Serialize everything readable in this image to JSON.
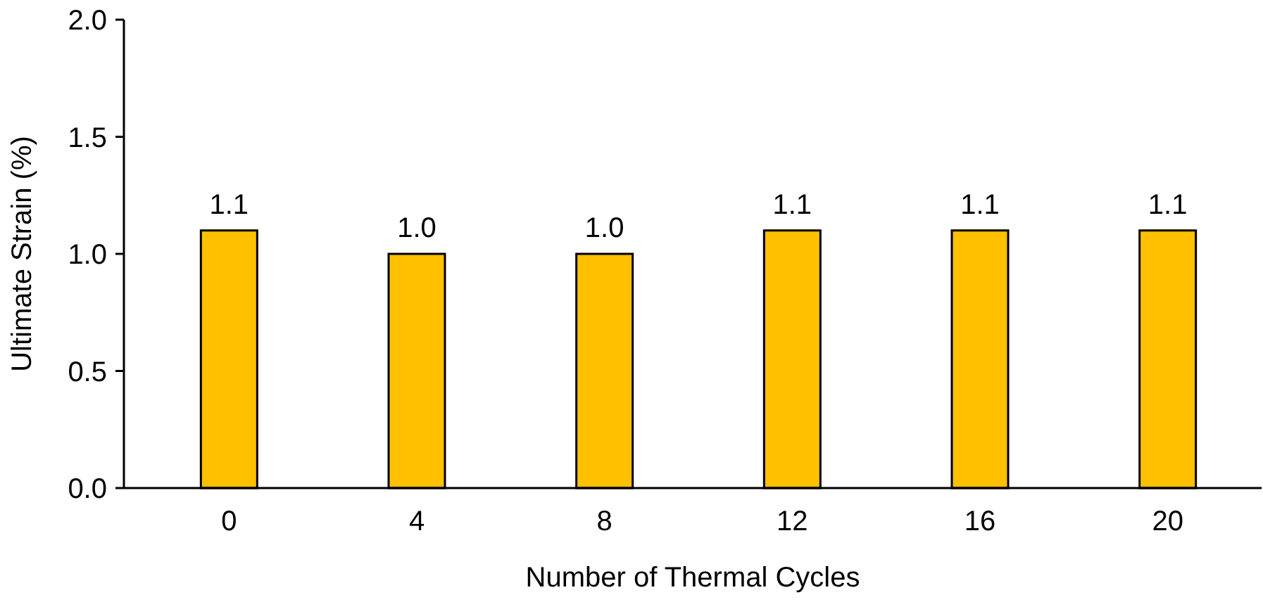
{
  "chart_data": {
    "type": "bar",
    "xlabel": "Number of Thermal Cycles",
    "ylabel": "Ultimate Strain (%)",
    "categories": [
      "0",
      "4",
      "8",
      "12",
      "16",
      "20"
    ],
    "values": [
      1.1,
      1.0,
      1.0,
      1.1,
      1.1,
      1.1
    ],
    "value_labels": [
      "1.1",
      "1.0",
      "1.0",
      "1.1",
      "1.1",
      "1.1"
    ],
    "color": "#ffc000",
    "ylim": [
      0,
      2
    ],
    "yticks": [
      {
        "value": 0,
        "label": "0.0"
      },
      {
        "value": 0.5,
        "label": "0.5"
      },
      {
        "value": 1,
        "label": "1.0"
      },
      {
        "value": 1.5,
        "label": "1.5"
      },
      {
        "value": 2,
        "label": "2.0"
      }
    ],
    "grid": false
  }
}
